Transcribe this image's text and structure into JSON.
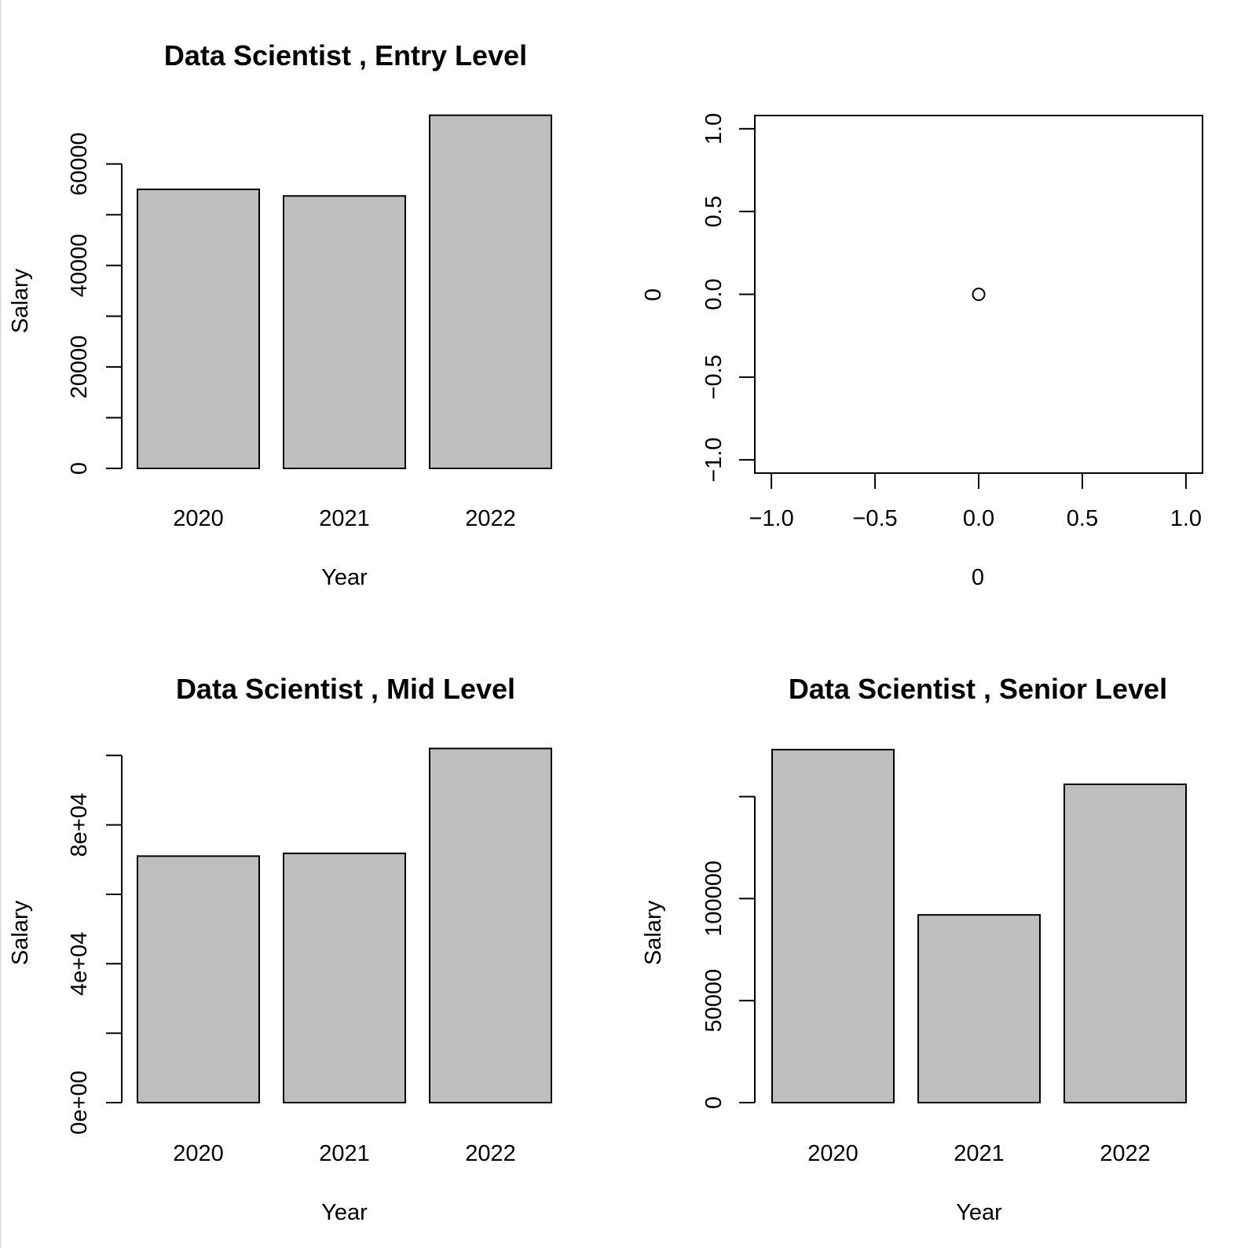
{
  "chart_data": [
    {
      "type": "bar",
      "title": "Data Scientist ,  Entry Level",
      "xlabel": "Year",
      "ylabel": "Salary",
      "categories": [
        "2020",
        "2021",
        "2022"
      ],
      "values": [
        55000,
        53700,
        69600
      ],
      "ylim": [
        0,
        70000
      ],
      "y_ticks": [
        0,
        10000,
        20000,
        30000,
        40000,
        50000,
        60000
      ],
      "y_tick_labels": [
        "0",
        "",
        "20000",
        "",
        "40000",
        "",
        "60000"
      ],
      "bar_color": "#bebebe",
      "grid": false
    },
    {
      "type": "scatter",
      "title": "",
      "xlabel": "0",
      "ylabel": "0",
      "x": [
        0
      ],
      "y": [
        0
      ],
      "xlim": [
        -1.08,
        1.08
      ],
      "ylim": [
        -1.08,
        1.08
      ],
      "x_ticks": [
        -1.0,
        -0.5,
        0.0,
        0.5,
        1.0
      ],
      "x_tick_labels": [
        "−1.0",
        "−0.5",
        "0.0",
        "0.5",
        "1.0"
      ],
      "y_ticks": [
        -1.0,
        -0.5,
        0.0,
        0.5,
        1.0
      ],
      "y_tick_labels": [
        "−1.0",
        "−0.5",
        "0.0",
        "0.5",
        "1.0"
      ],
      "grid": false
    },
    {
      "type": "bar",
      "title": "Data Scientist ,  Mid Level",
      "xlabel": "Year",
      "ylabel": "Salary",
      "categories": [
        "2020",
        "2021",
        "2022"
      ],
      "values": [
        71000,
        71800,
        102000
      ],
      "ylim": [
        0,
        100000
      ],
      "y_ticks": [
        0,
        20000,
        40000,
        60000,
        80000,
        100000
      ],
      "y_tick_labels": [
        "0e+00",
        "",
        "4e+04",
        "",
        "8e+04",
        ""
      ],
      "bar_color": "#bebebe",
      "grid": false
    },
    {
      "type": "bar",
      "title": "Data Scientist ,  Senior Level",
      "xlabel": "Year",
      "ylabel": "Salary",
      "categories": [
        "2020",
        "2021",
        "2022"
      ],
      "values": [
        173000,
        92000,
        156000
      ],
      "ylim": [
        0,
        150000
      ],
      "y_ticks": [
        0,
        50000,
        100000,
        150000
      ],
      "y_tick_labels": [
        "0",
        "50000",
        "100000",
        ""
      ],
      "bar_color": "#bebebe",
      "grid": false
    }
  ]
}
